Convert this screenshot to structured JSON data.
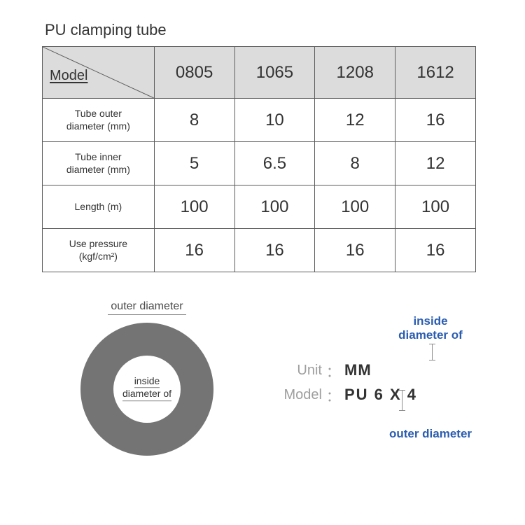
{
  "title": "PU clamping tube",
  "table": {
    "header_label": "Model",
    "columns": [
      "0805",
      "1065",
      "1208",
      "1612"
    ],
    "rows": [
      {
        "label": "Tube outer\ndiameter (mm)",
        "values": [
          "8",
          "10",
          "12",
          "16"
        ]
      },
      {
        "label": "Tube inner\ndiameter (mm)",
        "values": [
          "5",
          "6.5",
          "8",
          "12"
        ]
      },
      {
        "label": "Length (m)",
        "values": [
          "100",
          "100",
          "100",
          "100"
        ]
      },
      {
        "label": "Use pressure\n(kgf/cm²)",
        "values": [
          "16",
          "16",
          "16",
          "16"
        ]
      }
    ],
    "header_bg": "#dcdcdc",
    "border_color": "#5b5b5b",
    "header_fontsize": 24,
    "value_fontsize": 24,
    "label_fontsize": 14
  },
  "ring": {
    "outer_label": "outer diameter",
    "inner_label_l1": "inside",
    "inner_label_l2": "diameter of",
    "outer_radius": 95,
    "inner_radius": 48,
    "ring_color": "#747474",
    "hole_color": "#ffffff"
  },
  "legend": {
    "unit_label": "Unit",
    "unit_value": "MM",
    "model_label": "Model",
    "model_value": "PU 6 X 4",
    "anno_inside": "inside\ndiameter of",
    "anno_outer": "outer diameter",
    "anno_color": "#2a5db0",
    "label_color": "#9e9e9e",
    "value_color": "#333333"
  }
}
